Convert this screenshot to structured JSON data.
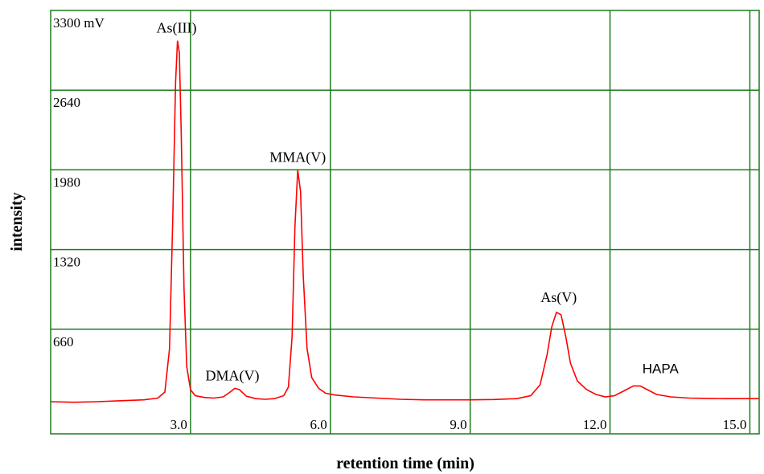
{
  "chart_data": {
    "type": "line",
    "title": "",
    "xlabel": "retention time (min)",
    "ylabel": "intensity",
    "xlim": [
      0,
      15.2
    ],
    "ylim": [
      0,
      3300
    ],
    "grid": true,
    "colors": {
      "line": "#ff0000",
      "grid": "#1e7a1e",
      "frame": "#1e7a1e"
    },
    "x_ticks": [
      {
        "value": 3.0,
        "label": "3.0"
      },
      {
        "value": 6.0,
        "label": "6.0"
      },
      {
        "value": 9.0,
        "label": "9.0"
      },
      {
        "value": 12.0,
        "label": "12.0"
      },
      {
        "value": 15.0,
        "label": "15.0"
      }
    ],
    "y_ticks": [
      {
        "value": 660,
        "label": "660"
      },
      {
        "value": 1320,
        "label": "1320"
      },
      {
        "value": 1980,
        "label": "1980"
      },
      {
        "value": 2640,
        "label": "2640"
      },
      {
        "value": 3300,
        "label": "3300 mV"
      }
    ],
    "peaks": [
      {
        "label": "As(III)",
        "x": 2.7,
        "y": 3050
      },
      {
        "label": "DMA(V)",
        "x": 3.9,
        "y": 170
      },
      {
        "label": "MMA(V)",
        "x": 5.3,
        "y": 1980
      },
      {
        "label": "As(V)",
        "x": 10.9,
        "y": 820
      },
      {
        "label": "HAPA",
        "x": 12.6,
        "y": 190
      }
    ],
    "series": [
      {
        "x": [
          0,
          0.5,
          1.0,
          1.5,
          2.0,
          2.3,
          2.45,
          2.55,
          2.62,
          2.68,
          2.72,
          2.76,
          2.8,
          2.86,
          2.92,
          3.0,
          3.1,
          3.3,
          3.5,
          3.7,
          3.85,
          3.95,
          4.05,
          4.2,
          4.4,
          4.6,
          4.8,
          5.0,
          5.1,
          5.18,
          5.24,
          5.3,
          5.36,
          5.42,
          5.5,
          5.6,
          5.75,
          5.9,
          6.1,
          6.5,
          7.0,
          7.5,
          8.0,
          8.5,
          9.0,
          9.5,
          10.0,
          10.3,
          10.5,
          10.65,
          10.75,
          10.85,
          10.95,
          11.05,
          11.15,
          11.3,
          11.5,
          11.7,
          11.9,
          12.1,
          12.3,
          12.5,
          12.65,
          12.8,
          13.0,
          13.3,
          13.7,
          14.0,
          14.5,
          15.0,
          15.2
        ],
        "y": [
          60,
          55,
          60,
          68,
          75,
          90,
          140,
          500,
          1600,
          2700,
          3050,
          2950,
          2300,
          1000,
          350,
          160,
          110,
          95,
          90,
          100,
          140,
          170,
          160,
          105,
          85,
          80,
          85,
          110,
          180,
          600,
          1500,
          1980,
          1800,
          1100,
          500,
          260,
          170,
          130,
          115,
          100,
          90,
          80,
          75,
          75,
          75,
          78,
          85,
          110,
          200,
          450,
          680,
          800,
          780,
          600,
          380,
          230,
          160,
          120,
          100,
          110,
          150,
          190,
          190,
          160,
          120,
          100,
          90,
          88,
          85,
          85,
          85
        ]
      }
    ]
  }
}
